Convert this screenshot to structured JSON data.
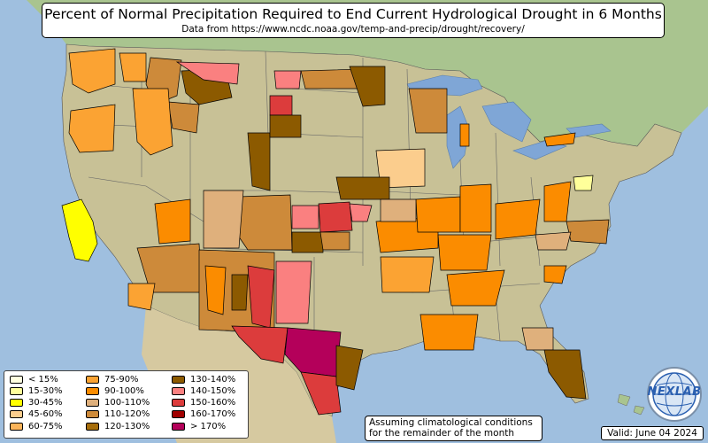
{
  "header": {
    "title": "Percent of Normal Precipitation Required to End Current Hydrological Drought in 6 Months",
    "subtitle": "Data from https://www.ncdc.noaa.gov/temp-and-precip/drought/recovery/"
  },
  "legend": {
    "items": [
      {
        "label": "< 15%",
        "color": "#ffffe0"
      },
      {
        "label": "15-30%",
        "color": "#ffff9a"
      },
      {
        "label": "30-45%",
        "color": "#ffff00"
      },
      {
        "label": "45-60%",
        "color": "#fbcd8d"
      },
      {
        "label": "60-75%",
        "color": "#fbb45a"
      },
      {
        "label": "75-90%",
        "color": "#fba333"
      },
      {
        "label": "90-100%",
        "color": "#fb8c00"
      },
      {
        "label": "100-110%",
        "color": "#dfb07c"
      },
      {
        "label": "110-120%",
        "color": "#cd8a3a"
      },
      {
        "label": "120-130%",
        "color": "#a66d0b"
      },
      {
        "label": "130-140%",
        "color": "#8c5a00"
      },
      {
        "label": "140-150%",
        "color": "#fa8080"
      },
      {
        "label": "150-160%",
        "color": "#dc3c3c"
      },
      {
        "label": "160-170%",
        "color": "#a00000"
      },
      {
        "label": "> 170%",
        "color": "#b4005a"
      }
    ]
  },
  "note": {
    "line1": "Assuming climatological conditions",
    "line2": "for the remainder of the month"
  },
  "valid": "Valid: June 04 2024",
  "logo": {
    "text": "NEXLAB",
    "icon": "globe-icon"
  }
}
